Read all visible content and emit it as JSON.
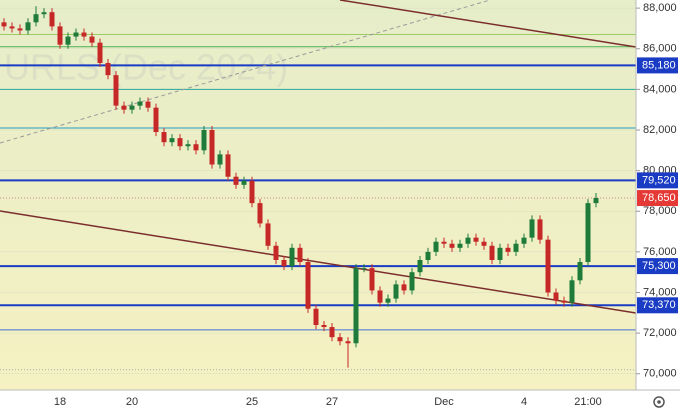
{
  "chart_data": {
    "type": "candlestick",
    "watermark": "URLS (Dec 2024)",
    "categories": [
      null,
      null,
      null,
      null,
      null,
      null,
      null,
      "18",
      null,
      null,
      null,
      null,
      null,
      null,
      null,
      null,
      "20",
      null,
      null,
      null,
      null,
      null,
      null,
      null,
      null,
      null,
      null,
      null,
      null,
      null,
      null,
      "25",
      null,
      null,
      null,
      null,
      null,
      null,
      null,
      null,
      null,
      "27",
      null,
      null,
      null,
      null,
      null,
      null,
      null,
      null,
      null,
      null,
      null,
      null,
      null,
      "Dec",
      null,
      null,
      null,
      null,
      null,
      null,
      null,
      null,
      null,
      "4",
      null,
      null,
      null,
      null,
      null,
      null,
      null,
      "21:00",
      null
    ],
    "open": [
      87300,
      87100,
      87000,
      86900,
      87300,
      87700,
      87800,
      87100,
      86200,
      86600,
      86800,
      86600,
      86300,
      85300,
      84700,
      83200,
      83000,
      83200,
      83400,
      83100,
      81900,
      81400,
      81600,
      81200,
      81300,
      81000,
      82000,
      80300,
      80800,
      79700,
      79300,
      79500,
      78400,
      77400,
      76300,
      75600,
      75300,
      76200,
      75500,
      73200,
      72400,
      72300,
      71800,
      71600,
      71500,
      75200,
      75200,
      74100,
      73500,
      73700,
      74400,
      74100,
      75000,
      75600,
      76000,
      76500,
      76400,
      76200,
      76400,
      76700,
      76500,
      76300,
      75600,
      76200,
      76000,
      76400,
      76700,
      77600,
      76600,
      74000,
      73600,
      73500,
      74600,
      75500,
      78400
    ],
    "high": [
      87500,
      87300,
      87200,
      87500,
      88100,
      88000,
      88000,
      87300,
      86800,
      87000,
      87000,
      86800,
      86500,
      85500,
      84900,
      83400,
      83400,
      83600,
      83600,
      83300,
      82100,
      81800,
      81800,
      81500,
      81500,
      82200,
      82200,
      81000,
      81000,
      79900,
      79700,
      79700,
      78600,
      77600,
      76500,
      75800,
      76400,
      76400,
      75700,
      73400,
      72600,
      72500,
      72000,
      71800,
      75400,
      75400,
      75400,
      74300,
      73900,
      74600,
      74600,
      75200,
      75800,
      76200,
      76700,
      76700,
      76600,
      76600,
      76900,
      76900,
      76700,
      76500,
      76400,
      76400,
      76600,
      76900,
      77800,
      77800,
      76800,
      74200,
      73800,
      74800,
      75700,
      78600,
      78900
    ],
    "low": [
      86900,
      86800,
      86700,
      86700,
      87100,
      87500,
      86900,
      86000,
      86000,
      86400,
      86400,
      86100,
      85100,
      84500,
      83000,
      82800,
      82800,
      83000,
      82900,
      81700,
      81200,
      81200,
      81000,
      81000,
      80800,
      80800,
      80100,
      80100,
      79500,
      79100,
      79100,
      78200,
      77200,
      76100,
      75400,
      75100,
      75100,
      75300,
      73000,
      72200,
      72100,
      71600,
      71400,
      70300,
      71300,
      75000,
      73900,
      73300,
      73300,
      73500,
      73900,
      73900,
      74800,
      75400,
      75800,
      76200,
      76000,
      76000,
      76200,
      76300,
      76100,
      75400,
      75400,
      75800,
      75800,
      76200,
      76500,
      76400,
      73800,
      73400,
      73300,
      73300,
      74400,
      75300,
      78200
    ],
    "close": [
      87100,
      87000,
      86900,
      87300,
      87700,
      87800,
      87100,
      86200,
      86600,
      86800,
      86600,
      86300,
      85300,
      84700,
      83200,
      83000,
      83200,
      83400,
      83100,
      81900,
      81400,
      81600,
      81200,
      81300,
      81000,
      82000,
      80300,
      80800,
      79700,
      79300,
      79500,
      78400,
      77400,
      76300,
      75600,
      75300,
      76200,
      75500,
      73200,
      72400,
      72300,
      71800,
      71600,
      71500,
      75200,
      75200,
      74100,
      73500,
      73700,
      74400,
      74100,
      75000,
      75600,
      76000,
      76500,
      76400,
      76200,
      76400,
      76700,
      76500,
      76300,
      75600,
      76200,
      76000,
      76400,
      76700,
      77600,
      76600,
      74000,
      73600,
      73500,
      74600,
      75500,
      78400,
      78650
    ],
    "up_color": "#1e7b3a",
    "down_color": "#c62828",
    "ylim": [
      69200,
      88400
    ],
    "yticks": [
      {
        "value": 70000,
        "label": "70,000"
      },
      {
        "value": 72000,
        "label": "72,000"
      },
      {
        "value": 74000,
        "label": "74,000"
      },
      {
        "value": 76000,
        "label": "76,000"
      },
      {
        "value": 78000,
        "label": "78,000"
      },
      {
        "value": 80000,
        "label": "80,000"
      },
      {
        "value": 82000,
        "label": "82,000"
      },
      {
        "value": 84000,
        "label": "84,000"
      },
      {
        "value": 86000,
        "label": "86,000"
      },
      {
        "value": 88000,
        "label": "88,000"
      }
    ],
    "levels": [
      {
        "value": 85180,
        "label": "85,180",
        "color": "#1a3cc4"
      },
      {
        "value": 79520,
        "label": "79,520",
        "color": "#1a3cc4"
      },
      {
        "value": 75300,
        "label": "75,300",
        "color": "#1a3cc4"
      },
      {
        "value": 73370,
        "label": "73,370",
        "color": "#1a3cc4"
      }
    ],
    "thin_lines": [
      {
        "value": 86700,
        "color": "#9ccc65"
      },
      {
        "value": 86100,
        "color": "#4caf50"
      },
      {
        "value": 84000,
        "color": "#26a69a"
      },
      {
        "value": 82100,
        "color": "#29a0c0"
      },
      {
        "value": 72160,
        "color": "#3f6fd0"
      }
    ],
    "last_price": {
      "value": 78650,
      "label": "78,650",
      "color": "#e53935"
    },
    "low_marker": 70200
  }
}
